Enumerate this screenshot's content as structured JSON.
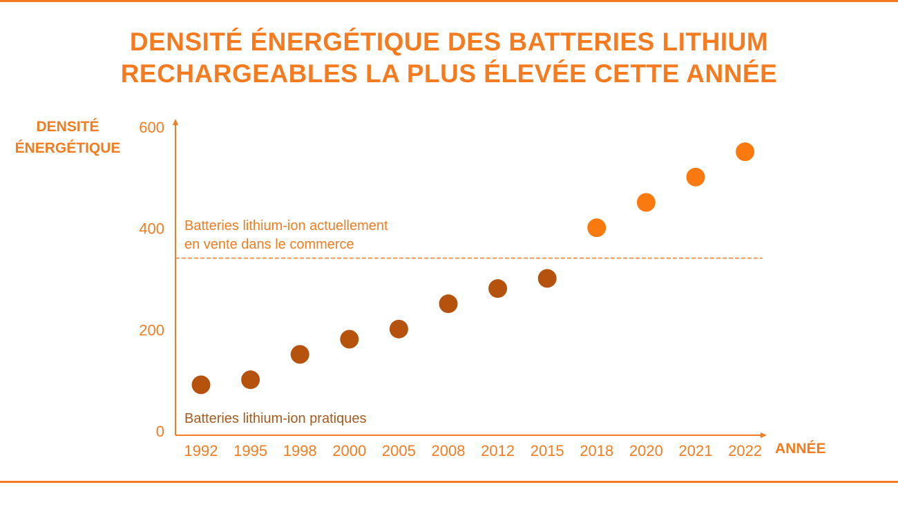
{
  "title_line1": "DENSITÉ ÉNERGÉTIQUE DES BATTERIES LITHIUM",
  "title_line2": "RECHARGEABLES LA PLUS ÉLEVÉE CETTE ANNÉE",
  "colors": {
    "accent": "#f47b20",
    "dark_points": "#b5530e",
    "light_points": "#fb7a10"
  },
  "chart_data": {
    "type": "scatter",
    "title": "DENSITÉ ÉNERGÉTIQUE DES BATTERIES LITHIUM RECHARGEABLES LA PLUS ÉLEVÉE CETTE ANNÉE",
    "xlabel": "ANNÉE",
    "ylabel_line1": "DENSITÉ",
    "ylabel_line2": "ÉNERGÉTIQUE",
    "ylabel": "DENSITÉ ÉNERGÉTIQUE",
    "ylim": [
      0,
      600
    ],
    "yticks": [
      "0",
      "200",
      "400",
      "600"
    ],
    "grid": false,
    "categories": [
      "1992",
      "1995",
      "1998",
      "2000",
      "2005",
      "2008",
      "2012",
      "2015",
      "2018",
      "2020",
      "2021",
      "2022"
    ],
    "series": [
      {
        "color": "#b5530e",
        "points": [
          {
            "x": "1992",
            "y": 90
          },
          {
            "x": "1995",
            "y": 100
          },
          {
            "x": "1998",
            "y": 150
          },
          {
            "x": "2000",
            "y": 180
          },
          {
            "x": "2005",
            "y": 200
          },
          {
            "x": "2008",
            "y": 250
          },
          {
            "x": "2012",
            "y": 280
          },
          {
            "x": "2015",
            "y": 300
          }
        ]
      },
      {
        "color": "#fb7a10",
        "points": [
          {
            "x": "2018",
            "y": 400
          },
          {
            "x": "2020",
            "y": 450
          },
          {
            "x": "2021",
            "y": 500
          },
          {
            "x": "2022",
            "y": 550
          }
        ]
      }
    ],
    "reference_line": {
      "y": 340,
      "style": "dashed"
    },
    "annotations": {
      "upper_line1": "Batteries lithium-ion actuellement",
      "upper_line2": "en vente dans le commerce",
      "lower": "Batteries lithium-ion pratiques"
    }
  }
}
